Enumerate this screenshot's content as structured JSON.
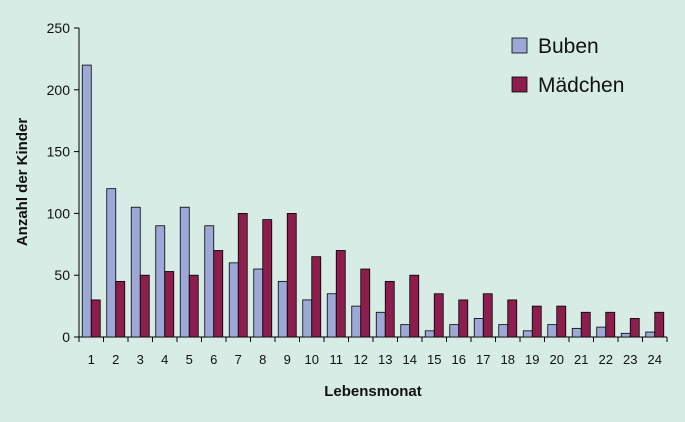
{
  "chart_data": {
    "type": "bar",
    "xlabel": "Lebensmonat",
    "ylabel": "Anzahl der Kinder",
    "ylim": [
      0,
      250
    ],
    "yticks": [
      0,
      50,
      100,
      150,
      200,
      250
    ],
    "categories": [
      "1",
      "2",
      "3",
      "4",
      "5",
      "6",
      "7",
      "8",
      "9",
      "10",
      "11",
      "12",
      "13",
      "14",
      "15",
      "16",
      "17",
      "18",
      "19",
      "20",
      "21",
      "22",
      "23",
      "24"
    ],
    "series": [
      {
        "name": "Buben",
        "color": "#9ea8d6",
        "values": [
          220,
          120,
          105,
          90,
          105,
          90,
          60,
          55,
          45,
          30,
          35,
          25,
          20,
          10,
          5,
          10,
          15,
          10,
          5,
          10,
          7,
          8,
          3,
          4
        ]
      },
      {
        "name": "Mädchen",
        "color": "#8c1e4e",
        "values": [
          30,
          45,
          50,
          53,
          50,
          70,
          100,
          95,
          100,
          65,
          70,
          55,
          45,
          50,
          35,
          30,
          35,
          30,
          25,
          25,
          20,
          20,
          15,
          20
        ]
      }
    ],
    "legend_position": "top-right",
    "grid": false
  }
}
